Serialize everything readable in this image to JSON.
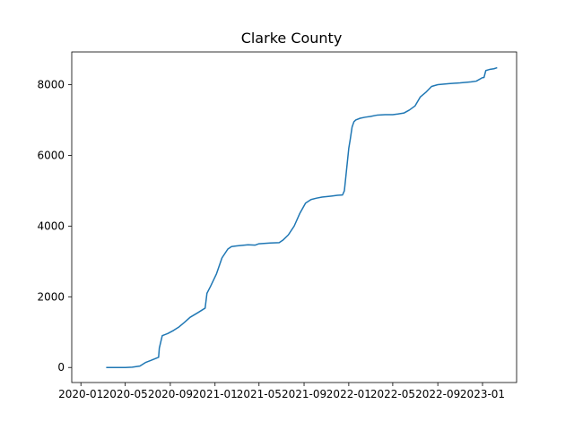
{
  "chart_data": {
    "type": "line",
    "title": "Clarke County",
    "xlabel": "",
    "ylabel": "",
    "x_tick_labels": [
      "2020-01",
      "2020-05",
      "2020-09",
      "2021-01",
      "2021-05",
      "2021-09",
      "2022-01",
      "2022-05",
      "2022-09",
      "2023-01"
    ],
    "y_tick_labels": [
      "0",
      "2000",
      "4000",
      "6000",
      "8000"
    ],
    "y_ticks": [
      0,
      2000,
      4000,
      6000,
      8000
    ],
    "x_range": [
      "2019-12-07",
      "2023-04-04"
    ],
    "ylim": [
      -425,
      8925
    ],
    "grid": false,
    "color": "#1f77b4",
    "series": [
      {
        "x": [
          "2020-03-10",
          "2020-04-10",
          "2020-05-01",
          "2020-05-20",
          "2020-06-10",
          "2020-06-25",
          "2020-07-10",
          "2020-07-31",
          "2020-08-02",
          "2020-08-10",
          "2020-08-25",
          "2020-09-10",
          "2020-09-25",
          "2020-10-10",
          "2020-10-25",
          "2020-11-15",
          "2020-12-05",
          "2020-12-10",
          "2020-12-20",
          "2021-01-05",
          "2021-01-20",
          "2021-02-05",
          "2021-02-15",
          "2021-03-01",
          "2021-04-01",
          "2021-04-20",
          "2021-05-01",
          "2021-06-01",
          "2021-06-25",
          "2021-07-05",
          "2021-07-20",
          "2021-08-05",
          "2021-08-20",
          "2021-09-05",
          "2021-09-20",
          "2021-10-05",
          "2021-10-20",
          "2021-11-15",
          "2021-12-01",
          "2021-12-15",
          "2021-12-20",
          "2021-12-25",
          "2022-01-01",
          "2022-01-05",
          "2022-01-10",
          "2022-01-15",
          "2022-01-20",
          "2022-02-01",
          "2022-02-15",
          "2022-03-01",
          "2022-03-20",
          "2022-04-10",
          "2022-05-01",
          "2022-05-15",
          "2022-06-01",
          "2022-06-15",
          "2022-07-01",
          "2022-07-15",
          "2022-08-01",
          "2022-08-15",
          "2022-09-01",
          "2022-10-01",
          "2022-11-01",
          "2022-12-01",
          "2022-12-15",
          "2023-01-01",
          "2023-01-05",
          "2023-01-10",
          "2023-01-20",
          "2023-02-01",
          "2023-02-10"
        ],
        "y": [
          0,
          0,
          0,
          10,
          40,
          140,
          200,
          290,
          550,
          900,
          960,
          1050,
          1150,
          1280,
          1420,
          1550,
          1680,
          2100,
          2300,
          2650,
          3100,
          3350,
          3420,
          3440,
          3470,
          3460,
          3500,
          3520,
          3530,
          3600,
          3750,
          4000,
          4350,
          4650,
          4750,
          4790,
          4820,
          4850,
          4870,
          4880,
          5000,
          5500,
          6200,
          6450,
          6800,
          6950,
          7000,
          7050,
          7080,
          7100,
          7140,
          7150,
          7150,
          7170,
          7200,
          7280,
          7400,
          7650,
          7800,
          7950,
          8000,
          8030,
          8050,
          8080,
          8100,
          8200,
          8200,
          8400,
          8430,
          8450,
          8480
        ]
      }
    ]
  }
}
